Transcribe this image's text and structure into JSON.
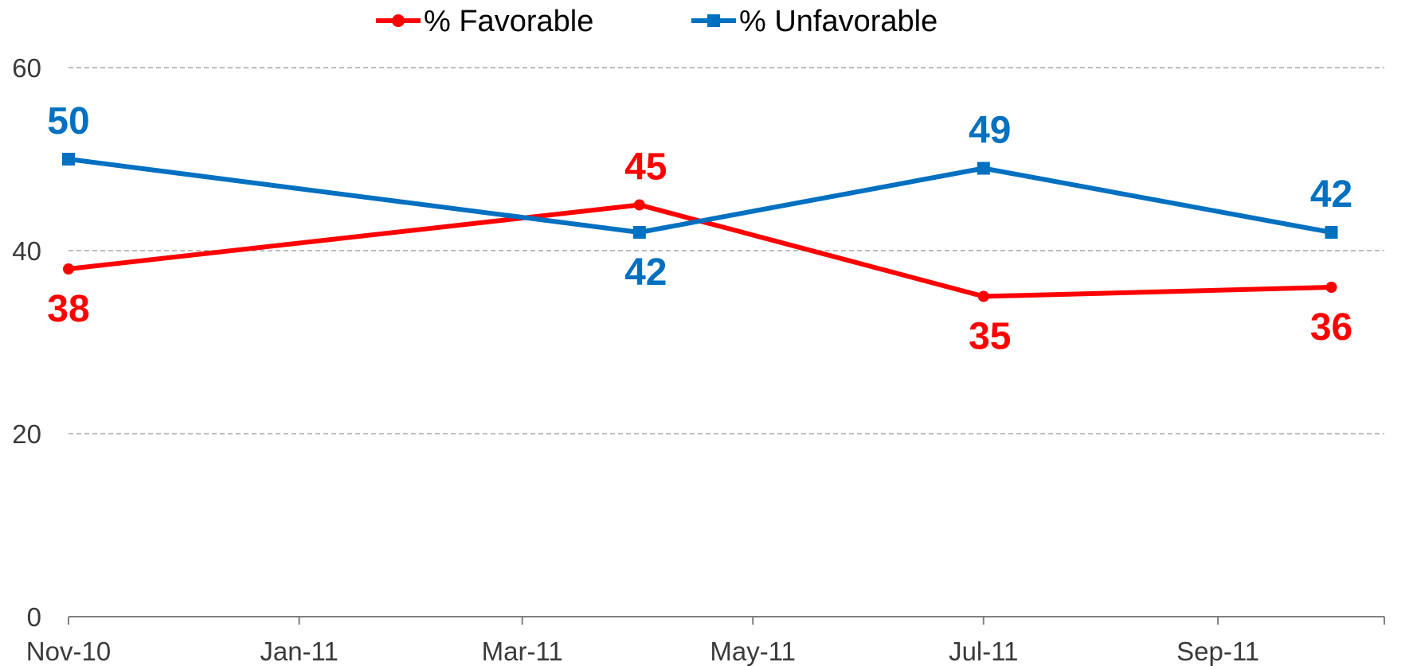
{
  "chart_data": {
    "type": "line",
    "x": [
      "2010-11-01",
      "2011-04-01",
      "2011-07-01",
      "2011-10-01"
    ],
    "series": [
      {
        "name": "% Favorable",
        "values": [
          38,
          45,
          35,
          36
        ],
        "color": "#ff0000",
        "marker": "circle",
        "labels": [
          "38",
          "45",
          "35",
          "36"
        ]
      },
      {
        "name": "% Unfavorable",
        "values": [
          50,
          42,
          49,
          42
        ],
        "color": "#0070c0",
        "marker": "square",
        "labels": [
          "50",
          "42",
          "49",
          "42"
        ]
      }
    ],
    "x_ticks": [
      {
        "date": "2010-11-01",
        "label": "Nov-10"
      },
      {
        "date": "2011-01-01",
        "label": "Jan-11"
      },
      {
        "date": "2011-03-01",
        "label": "Mar-11"
      },
      {
        "date": "2011-05-01",
        "label": "May-11"
      },
      {
        "date": "2011-07-01",
        "label": "Jul-11"
      },
      {
        "date": "2011-09-01",
        "label": "Sep-11"
      }
    ],
    "y_ticks": [
      0,
      20,
      40,
      60
    ],
    "ylim": [
      0,
      60
    ],
    "xlim": [
      "2010-11-01",
      "2011-10-15"
    ],
    "grid": "horizontal dashed",
    "legend_position": "top-center"
  }
}
